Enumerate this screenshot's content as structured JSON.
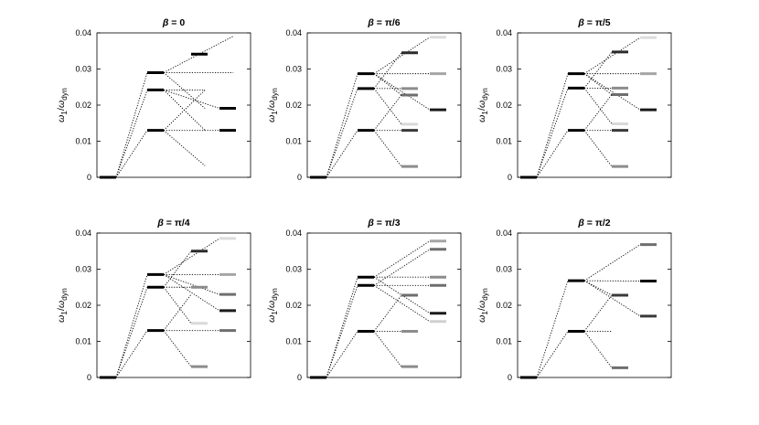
{
  "figure": {
    "ylabel": {
      "main": "ω",
      "main_sub": "1",
      "slash": "/",
      "den": "ω",
      "den_sub": "dyn"
    },
    "yticks": [
      "0",
      "0.01",
      "0.02",
      "0.03",
      "0.04"
    ],
    "ylim": [
      0,
      0.04
    ]
  },
  "chart_data": [
    {
      "type": "line",
      "title_prefix": "β",
      "title_value": "= 0",
      "ylim": [
        0,
        0.04
      ],
      "levels": [
        {
          "col": 0,
          "y": 0.0,
          "color": "#000000"
        },
        {
          "col": 1,
          "y": 0.029,
          "color": "#000000"
        },
        {
          "col": 1,
          "y": 0.0242,
          "color": "#000000"
        },
        {
          "col": 1,
          "y": 0.013,
          "color": "#000000"
        },
        {
          "col": 2,
          "y": 0.0341,
          "color": "#000000"
        },
        {
          "col": 3,
          "y": 0.0191,
          "color": "#000000"
        },
        {
          "col": 3,
          "y": 0.013,
          "color": "#000000"
        }
      ],
      "connectors": [
        {
          "x0": 0,
          "y0": 0.0,
          "x1": 1,
          "y1": 0.029
        },
        {
          "x0": 0,
          "y0": 0.0,
          "x1": 1,
          "y1": 0.0242
        },
        {
          "x0": 0,
          "y0": 0.0,
          "x1": 1,
          "y1": 0.013
        },
        {
          "x0": 1,
          "y0": 0.029,
          "x1": 3.2,
          "y1": 0.0391
        },
        {
          "x0": 1,
          "y0": 0.029,
          "x1": 3.2,
          "y1": 0.029
        },
        {
          "x0": 1,
          "y0": 0.029,
          "x1": 2.2,
          "y1": 0.0191
        },
        {
          "x0": 1,
          "y0": 0.0242,
          "x1": 2.2,
          "y1": 0.0242
        },
        {
          "x0": 1,
          "y0": 0.0242,
          "x1": 3.0,
          "y1": 0.0191
        },
        {
          "x0": 1,
          "y0": 0.0242,
          "x1": 2.2,
          "y1": 0.013
        },
        {
          "x0": 1,
          "y0": 0.013,
          "x1": 2.2,
          "y1": 0.0242
        },
        {
          "x0": 1,
          "y0": 0.013,
          "x1": 3.0,
          "y1": 0.013
        },
        {
          "x0": 1,
          "y0": 0.013,
          "x1": 2.2,
          "y1": 0.0032
        }
      ]
    },
    {
      "type": "line",
      "title_prefix": "β",
      "title_value": "=  π/6",
      "ylim": [
        0,
        0.04
      ],
      "levels": [
        {
          "col": 0,
          "y": 0.0,
          "color": "#000000"
        },
        {
          "col": 1,
          "y": 0.0287,
          "color": "#000000"
        },
        {
          "col": 1,
          "y": 0.0246,
          "color": "#000000"
        },
        {
          "col": 1,
          "y": 0.013,
          "color": "#000000"
        },
        {
          "col": 2,
          "y": 0.0345,
          "color": "#2b2b2b"
        },
        {
          "col": 2,
          "y": 0.0246,
          "color": "#8c8c8c"
        },
        {
          "col": 2,
          "y": 0.0228,
          "color": "#6e6e6e"
        },
        {
          "col": 2,
          "y": 0.0147,
          "color": "#d9d9d9"
        },
        {
          "col": 2,
          "y": 0.013,
          "color": "#3a3a3a"
        },
        {
          "col": 2,
          "y": 0.003,
          "color": "#8c8c8c"
        },
        {
          "col": 3,
          "y": 0.0388,
          "color": "#dcdcdc"
        },
        {
          "col": 3,
          "y": 0.0287,
          "color": "#a5a5a5"
        },
        {
          "col": 3,
          "y": 0.0187,
          "color": "#1a1a1a"
        }
      ],
      "connectors": [
        {
          "x0": 0,
          "y0": 0.0,
          "x1": 1,
          "y1": 0.0287
        },
        {
          "x0": 0,
          "y0": 0.0,
          "x1": 1,
          "y1": 0.0246
        },
        {
          "x0": 0,
          "y0": 0.0,
          "x1": 1,
          "y1": 0.013
        },
        {
          "x0": 1,
          "y0": 0.0287,
          "x1": 3,
          "y1": 0.0388
        },
        {
          "x0": 1,
          "y0": 0.0287,
          "x1": 3,
          "y1": 0.0287
        },
        {
          "x0": 1,
          "y0": 0.0287,
          "x1": 3,
          "y1": 0.0187
        },
        {
          "x0": 1,
          "y0": 0.0287,
          "x1": 2,
          "y1": 0.0228
        },
        {
          "x0": 1,
          "y0": 0.0246,
          "x1": 2,
          "y1": 0.0345
        },
        {
          "x0": 1,
          "y0": 0.0246,
          "x1": 2,
          "y1": 0.0246
        },
        {
          "x0": 1,
          "y0": 0.0246,
          "x1": 2,
          "y1": 0.0147
        },
        {
          "x0": 1,
          "y0": 0.013,
          "x1": 2,
          "y1": 0.0228
        },
        {
          "x0": 1,
          "y0": 0.013,
          "x1": 2,
          "y1": 0.013
        },
        {
          "x0": 1,
          "y0": 0.013,
          "x1": 2,
          "y1": 0.003
        }
      ]
    },
    {
      "type": "line",
      "title_prefix": "β",
      "title_value": "=  π/5",
      "ylim": [
        0,
        0.04
      ],
      "levels": [
        {
          "col": 0,
          "y": 0.0,
          "color": "#000000"
        },
        {
          "col": 1,
          "y": 0.0287,
          "color": "#000000"
        },
        {
          "col": 1,
          "y": 0.0247,
          "color": "#000000"
        },
        {
          "col": 1,
          "y": 0.013,
          "color": "#000000"
        },
        {
          "col": 2,
          "y": 0.0347,
          "color": "#2b2b2b"
        },
        {
          "col": 2,
          "y": 0.0247,
          "color": "#8c8c8c"
        },
        {
          "col": 2,
          "y": 0.0229,
          "color": "#6e6e6e"
        },
        {
          "col": 2,
          "y": 0.0148,
          "color": "#d9d9d9"
        },
        {
          "col": 2,
          "y": 0.013,
          "color": "#3a3a3a"
        },
        {
          "col": 2,
          "y": 0.003,
          "color": "#8c8c8c"
        },
        {
          "col": 3,
          "y": 0.0387,
          "color": "#dcdcdc"
        },
        {
          "col": 3,
          "y": 0.0287,
          "color": "#a5a5a5"
        },
        {
          "col": 3,
          "y": 0.0187,
          "color": "#1a1a1a"
        }
      ],
      "connectors": [
        {
          "x0": 0,
          "y0": 0.0,
          "x1": 1,
          "y1": 0.0287
        },
        {
          "x0": 0,
          "y0": 0.0,
          "x1": 1,
          "y1": 0.0247
        },
        {
          "x0": 0,
          "y0": 0.0,
          "x1": 1,
          "y1": 0.013
        },
        {
          "x0": 1,
          "y0": 0.0287,
          "x1": 3,
          "y1": 0.0387
        },
        {
          "x0": 1,
          "y0": 0.0287,
          "x1": 3,
          "y1": 0.0287
        },
        {
          "x0": 1,
          "y0": 0.0287,
          "x1": 3,
          "y1": 0.0187
        },
        {
          "x0": 1,
          "y0": 0.0287,
          "x1": 2,
          "y1": 0.0229
        },
        {
          "x0": 1,
          "y0": 0.0247,
          "x1": 2,
          "y1": 0.0347
        },
        {
          "x0": 1,
          "y0": 0.0247,
          "x1": 2,
          "y1": 0.0247
        },
        {
          "x0": 1,
          "y0": 0.0247,
          "x1": 2,
          "y1": 0.0148
        },
        {
          "x0": 1,
          "y0": 0.013,
          "x1": 2,
          "y1": 0.0229
        },
        {
          "x0": 1,
          "y0": 0.013,
          "x1": 2,
          "y1": 0.013
        },
        {
          "x0": 1,
          "y0": 0.013,
          "x1": 2,
          "y1": 0.003
        }
      ]
    },
    {
      "type": "line",
      "title_prefix": "β",
      "title_value": "=  π/4",
      "ylim": [
        0,
        0.04
      ],
      "levels": [
        {
          "col": 0,
          "y": 0.0,
          "color": "#000000"
        },
        {
          "col": 1,
          "y": 0.0285,
          "color": "#000000"
        },
        {
          "col": 1,
          "y": 0.025,
          "color": "#000000"
        },
        {
          "col": 1,
          "y": 0.013,
          "color": "#000000"
        },
        {
          "col": 2,
          "y": 0.035,
          "color": "#2b2b2b"
        },
        {
          "col": 2,
          "y": 0.025,
          "color": "#8c8c8c"
        },
        {
          "col": 2,
          "y": 0.015,
          "color": "#d9d9d9"
        },
        {
          "col": 2,
          "y": 0.003,
          "color": "#8c8c8c"
        },
        {
          "col": 3,
          "y": 0.0385,
          "color": "#dcdcdc"
        },
        {
          "col": 3,
          "y": 0.0285,
          "color": "#a5a5a5"
        },
        {
          "col": 3,
          "y": 0.023,
          "color": "#6e6e6e"
        },
        {
          "col": 3,
          "y": 0.0185,
          "color": "#1a1a1a"
        },
        {
          "col": 3,
          "y": 0.013,
          "color": "#6e6e6e"
        }
      ],
      "connectors": [
        {
          "x0": 0,
          "y0": 0.0,
          "x1": 1,
          "y1": 0.0285
        },
        {
          "x0": 0,
          "y0": 0.0,
          "x1": 1,
          "y1": 0.025
        },
        {
          "x0": 0,
          "y0": 0.0,
          "x1": 1,
          "y1": 0.013
        },
        {
          "x0": 1,
          "y0": 0.0285,
          "x1": 3,
          "y1": 0.0385
        },
        {
          "x0": 1,
          "y0": 0.0285,
          "x1": 3,
          "y1": 0.0285
        },
        {
          "x0": 1,
          "y0": 0.0285,
          "x1": 3,
          "y1": 0.0185
        },
        {
          "x0": 1,
          "y0": 0.0285,
          "x1": 3,
          "y1": 0.023
        },
        {
          "x0": 1,
          "y0": 0.025,
          "x1": 2,
          "y1": 0.035
        },
        {
          "x0": 1,
          "y0": 0.025,
          "x1": 2,
          "y1": 0.025
        },
        {
          "x0": 1,
          "y0": 0.025,
          "x1": 2,
          "y1": 0.015
        },
        {
          "x0": 1,
          "y0": 0.013,
          "x1": 2,
          "y1": 0.023
        },
        {
          "x0": 1,
          "y0": 0.013,
          "x1": 3,
          "y1": 0.013
        },
        {
          "x0": 1,
          "y0": 0.013,
          "x1": 2,
          "y1": 0.003
        }
      ]
    },
    {
      "type": "line",
      "title_prefix": "β",
      "title_value": "=  π/3",
      "ylim": [
        0,
        0.04
      ],
      "levels": [
        {
          "col": 0,
          "y": 0.0,
          "color": "#000000"
        },
        {
          "col": 1,
          "y": 0.0278,
          "color": "#000000"
        },
        {
          "col": 1,
          "y": 0.0255,
          "color": "#000000"
        },
        {
          "col": 1,
          "y": 0.0128,
          "color": "#000000"
        },
        {
          "col": 2,
          "y": 0.0228,
          "color": "#6e6e6e"
        },
        {
          "col": 2,
          "y": 0.0128,
          "color": "#8c8c8c"
        },
        {
          "col": 2,
          "y": 0.003,
          "color": "#8c8c8c"
        },
        {
          "col": 3,
          "y": 0.0378,
          "color": "#a5a5a5"
        },
        {
          "col": 3,
          "y": 0.0355,
          "color": "#6e6e6e"
        },
        {
          "col": 3,
          "y": 0.0278,
          "color": "#8c8c8c"
        },
        {
          "col": 3,
          "y": 0.0255,
          "color": "#6e6e6e"
        },
        {
          "col": 3,
          "y": 0.0178,
          "color": "#1a1a1a"
        },
        {
          "col": 3,
          "y": 0.0155,
          "color": "#d0d0d0"
        }
      ],
      "connectors": [
        {
          "x0": 0,
          "y0": 0.0,
          "x1": 1,
          "y1": 0.0278
        },
        {
          "x0": 0,
          "y0": 0.0,
          "x1": 1,
          "y1": 0.0255
        },
        {
          "x0": 0,
          "y0": 0.0,
          "x1": 1,
          "y1": 0.0128
        },
        {
          "x0": 1,
          "y0": 0.0278,
          "x1": 3,
          "y1": 0.0378
        },
        {
          "x0": 1,
          "y0": 0.0278,
          "x1": 3,
          "y1": 0.0278
        },
        {
          "x0": 1,
          "y0": 0.0278,
          "x1": 3,
          "y1": 0.0178
        },
        {
          "x0": 1,
          "y0": 0.0255,
          "x1": 3,
          "y1": 0.0355
        },
        {
          "x0": 1,
          "y0": 0.0255,
          "x1": 3,
          "y1": 0.0255
        },
        {
          "x0": 1,
          "y0": 0.0255,
          "x1": 3,
          "y1": 0.0155
        },
        {
          "x0": 1,
          "y0": 0.0128,
          "x1": 2,
          "y1": 0.0228
        },
        {
          "x0": 1,
          "y0": 0.0128,
          "x1": 2,
          "y1": 0.0128
        },
        {
          "x0": 1,
          "y0": 0.0128,
          "x1": 2,
          "y1": 0.003
        }
      ]
    },
    {
      "type": "line",
      "title_prefix": "β",
      "title_value": "=  π/2",
      "ylim": [
        0,
        0.04
      ],
      "levels": [
        {
          "col": 0,
          "y": 0.0,
          "color": "#000000"
        },
        {
          "col": 1,
          "y": 0.0268,
          "color": "#000000"
        },
        {
          "col": 1,
          "y": 0.0128,
          "color": "#000000"
        },
        {
          "col": 2,
          "y": 0.0228,
          "color": "#3a3a3a"
        },
        {
          "col": 2,
          "y": 0.0027,
          "color": "#6e6e6e"
        },
        {
          "col": 3,
          "y": 0.0368,
          "color": "#6e6e6e"
        },
        {
          "col": 3,
          "y": 0.0267,
          "color": "#000000"
        },
        {
          "col": 3,
          "y": 0.017,
          "color": "#3a3a3a"
        }
      ],
      "connectors": [
        {
          "x0": 0,
          "y0": 0.0,
          "x1": 1,
          "y1": 0.0268
        },
        {
          "x0": 0,
          "y0": 0.0,
          "x1": 1,
          "y1": 0.0128
        },
        {
          "x0": 1,
          "y0": 0.0268,
          "x1": 3,
          "y1": 0.0368
        },
        {
          "x0": 1,
          "y0": 0.0268,
          "x1": 3,
          "y1": 0.0267
        },
        {
          "x0": 1,
          "y0": 0.0268,
          "x1": 3,
          "y1": 0.017
        },
        {
          "x0": 1,
          "y0": 0.0268,
          "x1": 2,
          "y1": 0.0228
        },
        {
          "x0": 1,
          "y0": 0.0128,
          "x1": 2,
          "y1": 0.0228
        },
        {
          "x0": 1,
          "y0": 0.0128,
          "x1": 2,
          "y1": 0.0128
        },
        {
          "x0": 1,
          "y0": 0.0128,
          "x1": 2,
          "y1": 0.0027
        }
      ]
    }
  ]
}
